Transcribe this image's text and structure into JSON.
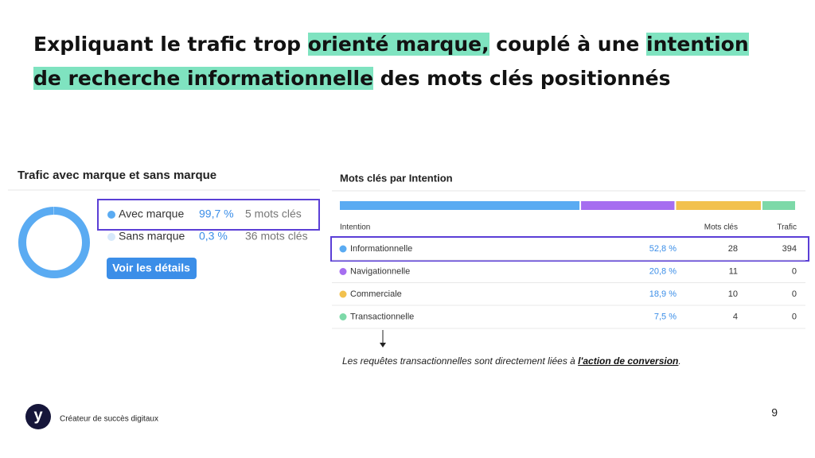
{
  "header": {
    "title_parts": [
      {
        "text": "Expliquant le trafic trop ",
        "highlight": false
      },
      {
        "text": "orienté marque,",
        "highlight": true
      },
      {
        "text": " couplé à une ",
        "highlight": false
      },
      {
        "text": "intention de recherche informationnelle",
        "highlight": true
      },
      {
        "text": " des mots clés positionnés",
        "highlight": false
      }
    ]
  },
  "brand_panel": {
    "title": "Trafic avec marque et sans marque",
    "rows": [
      {
        "name": "Avec marque",
        "share": 99.7,
        "share_label": "99,7 %",
        "keywords": "5 mots clés",
        "color": "#5aabf2",
        "highlighted": true
      },
      {
        "name": "Sans marque",
        "share": 0.3,
        "share_label": "0,3 %",
        "keywords": "36 mots clés",
        "color": "#d6e9fb",
        "highlighted": false
      }
    ],
    "button": "Voir les détails"
  },
  "intent_panel": {
    "title": "Mots clés par Intention",
    "columns": [
      "Intention",
      "Mots clés",
      "Trafic"
    ],
    "rows": [
      {
        "name": "Informationnelle",
        "color": "#5aabf2",
        "share": 52.8,
        "share_label": "52,8 %",
        "keywords": 28,
        "traffic": 394,
        "highlighted": true
      },
      {
        "name": "Navigationnelle",
        "color": "#a66ef0",
        "share": 20.8,
        "share_label": "20,8 %",
        "keywords": 11,
        "traffic": 0,
        "highlighted": false
      },
      {
        "name": "Commerciale",
        "color": "#f2c14e",
        "share": 18.9,
        "share_label": "18,9 %",
        "keywords": 10,
        "traffic": 0,
        "highlighted": false
      },
      {
        "name": "Transactionnelle",
        "color": "#7dd9a8",
        "share": 7.5,
        "share_label": "7,5 %",
        "keywords": 4,
        "traffic": 0,
        "highlighted": false
      }
    ]
  },
  "note": {
    "text": "Les requêtes transactionnelles sont directement liées à ",
    "link": "l'action de conversion",
    "end": "."
  },
  "footer": {
    "logo": "y",
    "tagline": "Créateur de succès digitaux",
    "page": 9
  }
}
